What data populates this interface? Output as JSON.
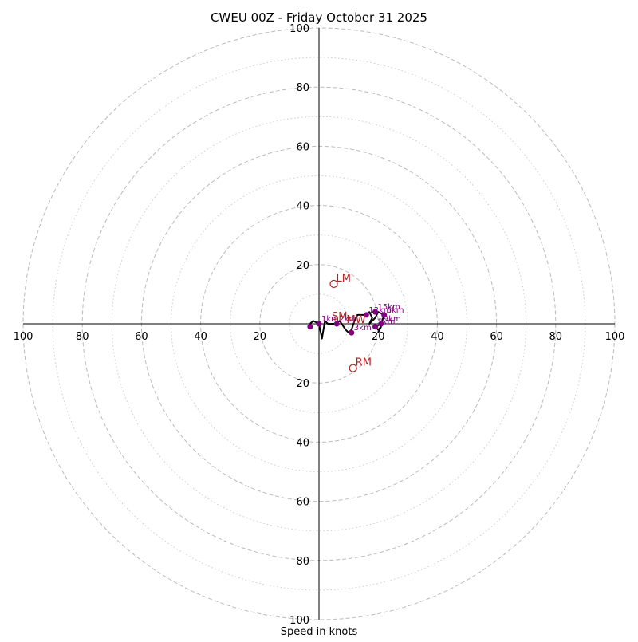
{
  "chart_data": {
    "type": "scatter",
    "subtype": "hodograph",
    "title": "CWEU 00Z - Friday October 31 2025",
    "xlabel": "Speed in knots",
    "ylabel": "",
    "xlim": [
      -100,
      100
    ],
    "ylim": [
      -100,
      100
    ],
    "ring_speeds_major": [
      20,
      40,
      60,
      80,
      100
    ],
    "ring_speeds_minor": [
      10,
      30,
      50,
      70,
      90
    ],
    "axis_tick_labels": {
      "left": [
        "100",
        "80",
        "60",
        "40",
        "20"
      ],
      "right": [
        "20",
        "40",
        "60",
        "80",
        "100"
      ],
      "up": [
        "20",
        "40",
        "60",
        "80",
        "100"
      ],
      "down": [
        "20",
        "40",
        "60",
        "80",
        "100"
      ]
    },
    "grid": true,
    "hodograph_trace": [
      [
        -3,
        0
      ],
      [
        -2,
        1
      ],
      [
        0,
        0
      ],
      [
        1,
        -5
      ],
      [
        2,
        1
      ],
      [
        3,
        0
      ],
      [
        5,
        0
      ],
      [
        7,
        1
      ],
      [
        9,
        -2
      ],
      [
        10,
        -3
      ],
      [
        11,
        -2
      ],
      [
        12,
        1
      ],
      [
        13,
        3
      ],
      [
        15,
        3
      ],
      [
        16,
        3
      ],
      [
        17,
        4
      ],
      [
        18,
        2
      ],
      [
        17,
        0
      ],
      [
        19,
        2
      ],
      [
        20,
        4
      ],
      [
        22,
        3
      ],
      [
        21,
        0
      ],
      [
        19,
        -1
      ],
      [
        20,
        -2
      ],
      [
        21,
        -1
      ],
      [
        20,
        -3
      ]
    ],
    "height_markers": [
      {
        "label": "1km",
        "u": 0,
        "v": 0
      },
      {
        "label": "2km",
        "u": 6,
        "v": 0
      },
      {
        "label": "3km",
        "u": 11,
        "v": -3
      },
      {
        "label": "12km",
        "u": 16,
        "v": 3
      },
      {
        "label": "15km",
        "u": 19,
        "v": 4
      },
      {
        "label": "6km",
        "u": 22,
        "v": 3
      },
      {
        "label": "9km",
        "u": 21,
        "v": 0
      },
      {
        "label": "5km",
        "u": 19,
        "v": -1
      },
      {
        "label": "",
        "u": -3,
        "v": -1
      }
    ],
    "motion_markers": [
      {
        "label": "LM",
        "u": 5,
        "v": 13.5,
        "marker": "circle"
      },
      {
        "label": "RM",
        "u": 11.5,
        "v": -15,
        "marker": "circle"
      },
      {
        "label": "MW",
        "u": 8.5,
        "v": -0.5,
        "marker": "none"
      },
      {
        "label": "SM",
        "u": 3.5,
        "v": 0.5,
        "marker": "none"
      }
    ],
    "colors": {
      "trace": "#000000",
      "height_markers": "#800080",
      "motion_markers": "#b22222",
      "rings": "#bbbbbb",
      "minor_rings": "#cccccc",
      "axes": "#000000"
    }
  }
}
